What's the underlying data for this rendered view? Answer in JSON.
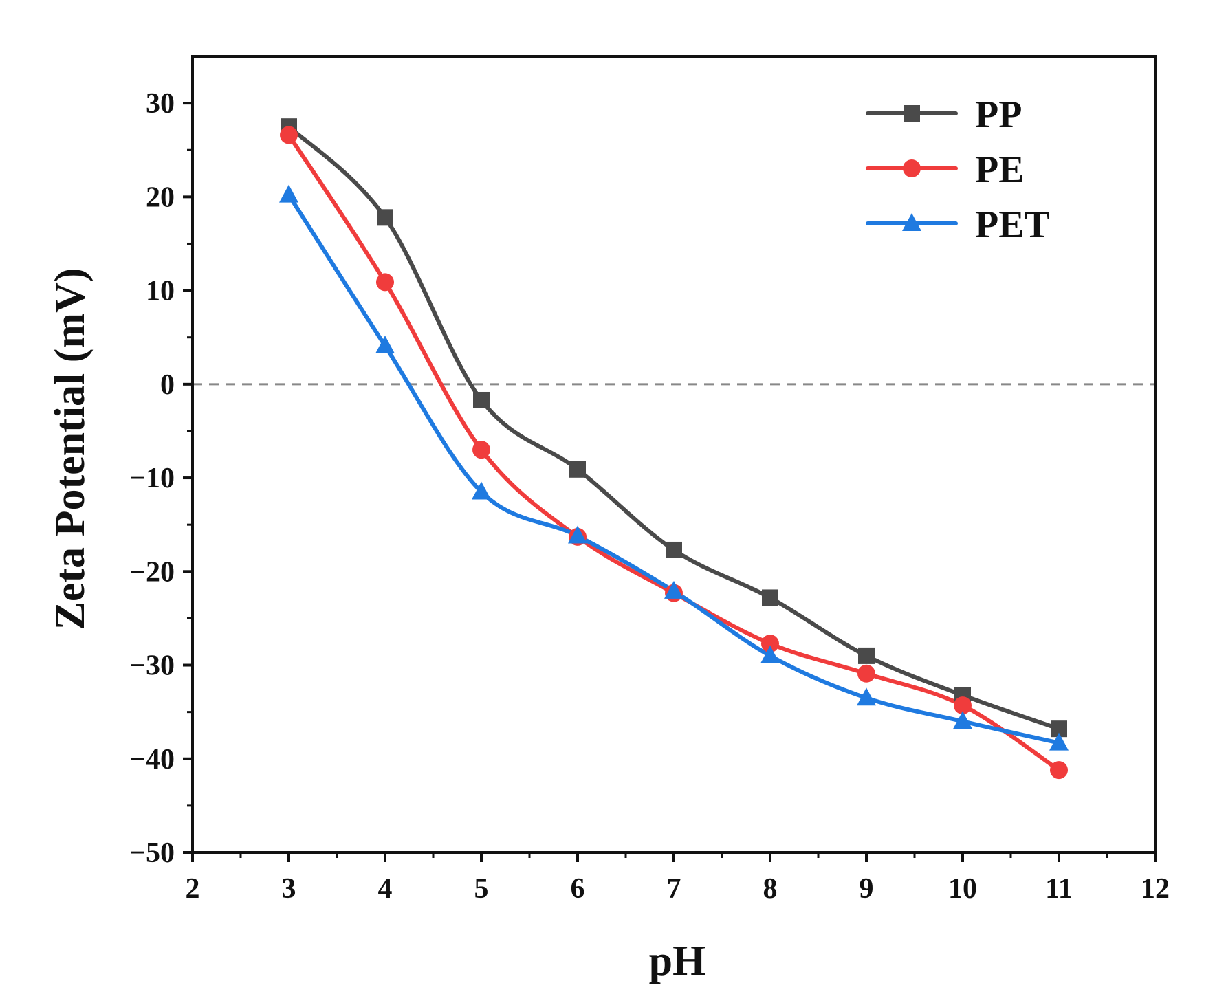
{
  "chart_data": {
    "type": "line",
    "xlabel": "pH",
    "ylabel": "Zeta Potential (mV)",
    "xlim": [
      2,
      12
    ],
    "ylim": [
      -50,
      35
    ],
    "xticks": [
      2,
      3,
      4,
      5,
      6,
      7,
      8,
      9,
      10,
      11,
      12
    ],
    "yticks": [
      -50,
      -40,
      -30,
      -20,
      -10,
      0,
      10,
      20,
      30
    ],
    "tick_labels": {
      "x": [
        "2",
        "3",
        "4",
        "5",
        "6",
        "7",
        "8",
        "9",
        "10",
        "11",
        "12"
      ],
      "y": [
        "−50",
        "−40",
        "−30",
        "−20",
        "−10",
        "0",
        "10",
        "20",
        "30"
      ]
    },
    "reference_line": {
      "y": 0,
      "style": "dashed",
      "color": "#888888"
    },
    "legend_position": "top-right",
    "x": [
      3,
      4,
      5,
      6,
      7,
      8,
      9,
      10,
      11
    ],
    "series": [
      {
        "name": "PP",
        "marker": "square",
        "color": "#4a4a4a",
        "values": [
          27.5,
          17.8,
          -1.7,
          -9.1,
          -17.7,
          -22.8,
          -29.0,
          -33.2,
          -36.8
        ]
      },
      {
        "name": "PE",
        "marker": "circle",
        "color": "#f03c3c",
        "values": [
          26.6,
          10.9,
          -7.0,
          -16.3,
          -22.3,
          -27.7,
          -30.9,
          -34.3,
          -41.2
        ]
      },
      {
        "name": "PET",
        "marker": "triangle",
        "color": "#1f7ae0",
        "values": [
          20.2,
          4.1,
          -11.5,
          -16.2,
          -22.1,
          -29.0,
          -33.5,
          -36.0,
          -38.3
        ]
      }
    ]
  }
}
